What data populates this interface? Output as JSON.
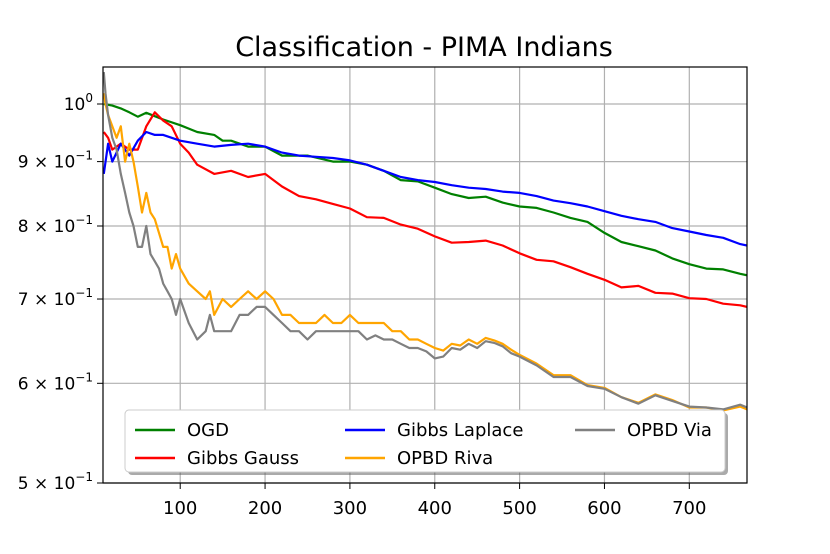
{
  "chart_data": {
    "type": "line",
    "title": "Classification - PIMA Indians",
    "xlabel": "",
    "ylabel": "",
    "xlim": [
      9,
      768
    ],
    "ylim": [
      0.5,
      1.07
    ],
    "yscale": "log",
    "grid": true,
    "legend_position": "lower center",
    "x_ticks": [
      {
        "value": 100,
        "label": "100"
      },
      {
        "value": 200,
        "label": "200"
      },
      {
        "value": 300,
        "label": "300"
      },
      {
        "value": 400,
        "label": "400"
      },
      {
        "value": 500,
        "label": "500"
      },
      {
        "value": 600,
        "label": "600"
      },
      {
        "value": 700,
        "label": "700"
      }
    ],
    "y_ticks": [
      {
        "value": 1.0,
        "base": "10",
        "exp": "0"
      },
      {
        "value": 0.9,
        "base": "9 × 10",
        "exp": "−1"
      },
      {
        "value": 0.8,
        "base": "8 × 10",
        "exp": "−1"
      },
      {
        "value": 0.7,
        "base": "7 × 10",
        "exp": "−1"
      },
      {
        "value": 0.6,
        "base": "6 × 10",
        "exp": "−1"
      },
      {
        "value": 0.5,
        "base": "5 × 10",
        "exp": "−1"
      }
    ],
    "legend_columns": [
      [
        "OGD",
        "Gibbs Gauss"
      ],
      [
        "Gibbs Laplace",
        "OPBD Riva"
      ],
      [
        "OPBD Via"
      ]
    ],
    "series": [
      {
        "name": "OGD",
        "color": "#008000",
        "x": [
          10,
          20,
          30,
          40,
          50,
          60,
          70,
          80,
          100,
          120,
          140,
          150,
          160,
          180,
          200,
          220,
          250,
          280,
          300,
          320,
          340,
          360,
          380,
          400,
          420,
          440,
          460,
          480,
          500,
          520,
          540,
          560,
          580,
          600,
          620,
          640,
          660,
          680,
          700,
          720,
          740,
          760,
          768
        ],
        "y": [
          1.0,
          0.997,
          0.992,
          0.985,
          0.977,
          0.984,
          0.978,
          0.972,
          0.962,
          0.95,
          0.945,
          0.935,
          0.935,
          0.925,
          0.925,
          0.91,
          0.91,
          0.9,
          0.9,
          0.895,
          0.885,
          0.87,
          0.868,
          0.858,
          0.848,
          0.842,
          0.844,
          0.835,
          0.829,
          0.827,
          0.82,
          0.812,
          0.806,
          0.79,
          0.777,
          0.771,
          0.765,
          0.754,
          0.746,
          0.74,
          0.739,
          0.733,
          0.731
        ]
      },
      {
        "name": "Gibbs Gauss",
        "color": "#ff0000",
        "x": [
          10,
          15,
          20,
          30,
          40,
          50,
          60,
          70,
          80,
          90,
          100,
          110,
          120,
          140,
          160,
          180,
          200,
          220,
          240,
          260,
          280,
          300,
          320,
          340,
          360,
          380,
          400,
          420,
          440,
          460,
          480,
          500,
          520,
          540,
          560,
          580,
          600,
          620,
          640,
          660,
          680,
          700,
          720,
          740,
          760,
          768
        ],
        "y": [
          0.95,
          0.94,
          0.92,
          0.93,
          0.92,
          0.92,
          0.96,
          0.985,
          0.97,
          0.96,
          0.93,
          0.915,
          0.895,
          0.88,
          0.885,
          0.875,
          0.88,
          0.86,
          0.845,
          0.84,
          0.833,
          0.826,
          0.813,
          0.812,
          0.802,
          0.796,
          0.785,
          0.776,
          0.777,
          0.779,
          0.772,
          0.761,
          0.752,
          0.75,
          0.742,
          0.733,
          0.725,
          0.715,
          0.717,
          0.708,
          0.707,
          0.701,
          0.7,
          0.694,
          0.692,
          0.69
        ]
      },
      {
        "name": "Gibbs Laplace",
        "color": "#0000ff",
        "x": [
          10,
          15,
          20,
          30,
          40,
          50,
          60,
          70,
          80,
          90,
          100,
          120,
          140,
          160,
          180,
          200,
          220,
          240,
          260,
          280,
          300,
          320,
          340,
          360,
          380,
          400,
          420,
          440,
          460,
          480,
          500,
          520,
          540,
          560,
          580,
          600,
          620,
          640,
          660,
          680,
          700,
          720,
          740,
          760,
          768
        ],
        "y": [
          0.88,
          0.93,
          0.9,
          0.93,
          0.91,
          0.935,
          0.95,
          0.945,
          0.945,
          0.94,
          0.935,
          0.93,
          0.925,
          0.928,
          0.93,
          0.925,
          0.915,
          0.91,
          0.908,
          0.906,
          0.902,
          0.895,
          0.885,
          0.875,
          0.87,
          0.867,
          0.862,
          0.858,
          0.856,
          0.852,
          0.85,
          0.845,
          0.838,
          0.834,
          0.829,
          0.822,
          0.815,
          0.81,
          0.806,
          0.797,
          0.792,
          0.787,
          0.783,
          0.774,
          0.772
        ]
      },
      {
        "name": "OPBD Riva",
        "color": "#ffa500",
        "x": [
          10,
          12,
          15,
          20,
          25,
          30,
          35,
          40,
          45,
          50,
          55,
          60,
          65,
          70,
          75,
          80,
          85,
          90,
          95,
          100,
          110,
          120,
          130,
          135,
          140,
          150,
          160,
          170,
          180,
          190,
          200,
          210,
          220,
          230,
          240,
          250,
          260,
          270,
          280,
          290,
          300,
          310,
          320,
          330,
          340,
          350,
          360,
          370,
          380,
          390,
          400,
          410,
          420,
          430,
          440,
          450,
          460,
          470,
          480,
          490,
          500,
          520,
          540,
          560,
          580,
          600,
          620,
          640,
          660,
          680,
          700,
          720,
          740,
          760,
          768
        ],
        "y": [
          1.02,
          1.0,
          0.98,
          0.96,
          0.94,
          0.96,
          0.9,
          0.93,
          0.9,
          0.86,
          0.82,
          0.85,
          0.82,
          0.81,
          0.79,
          0.77,
          0.77,
          0.74,
          0.76,
          0.74,
          0.72,
          0.71,
          0.7,
          0.71,
          0.68,
          0.7,
          0.69,
          0.7,
          0.71,
          0.7,
          0.71,
          0.7,
          0.68,
          0.68,
          0.67,
          0.67,
          0.67,
          0.68,
          0.67,
          0.67,
          0.68,
          0.67,
          0.67,
          0.67,
          0.67,
          0.66,
          0.66,
          0.65,
          0.65,
          0.645,
          0.64,
          0.637,
          0.645,
          0.643,
          0.65,
          0.645,
          0.652,
          0.649,
          0.645,
          0.638,
          0.632,
          0.622,
          0.609,
          0.609,
          0.598,
          0.595,
          0.585,
          0.579,
          0.588,
          0.582,
          0.574,
          0.574,
          0.571,
          0.575,
          0.572
        ]
      },
      {
        "name": "OPBD Via",
        "color": "#808080",
        "x": [
          10,
          12,
          15,
          20,
          25,
          30,
          35,
          40,
          45,
          50,
          55,
          60,
          65,
          70,
          75,
          80,
          85,
          90,
          95,
          100,
          110,
          120,
          130,
          135,
          140,
          150,
          160,
          170,
          180,
          190,
          200,
          210,
          220,
          230,
          240,
          250,
          260,
          270,
          280,
          290,
          300,
          310,
          320,
          330,
          340,
          350,
          360,
          370,
          380,
          390,
          400,
          410,
          420,
          430,
          440,
          450,
          460,
          470,
          480,
          490,
          500,
          520,
          540,
          560,
          580,
          600,
          620,
          640,
          660,
          680,
          700,
          720,
          740,
          760,
          768
        ],
        "y": [
          1.06,
          1.02,
          0.98,
          0.94,
          0.92,
          0.88,
          0.85,
          0.82,
          0.8,
          0.77,
          0.77,
          0.8,
          0.76,
          0.75,
          0.74,
          0.72,
          0.71,
          0.7,
          0.68,
          0.7,
          0.67,
          0.65,
          0.66,
          0.68,
          0.66,
          0.66,
          0.66,
          0.68,
          0.68,
          0.69,
          0.69,
          0.68,
          0.67,
          0.66,
          0.66,
          0.65,
          0.66,
          0.66,
          0.66,
          0.66,
          0.66,
          0.66,
          0.65,
          0.655,
          0.65,
          0.65,
          0.645,
          0.64,
          0.64,
          0.636,
          0.628,
          0.63,
          0.64,
          0.638,
          0.645,
          0.64,
          0.648,
          0.646,
          0.642,
          0.634,
          0.63,
          0.62,
          0.607,
          0.607,
          0.597,
          0.594,
          0.585,
          0.578,
          0.587,
          0.581,
          0.575,
          0.574,
          0.572,
          0.577,
          0.574
        ]
      }
    ]
  }
}
